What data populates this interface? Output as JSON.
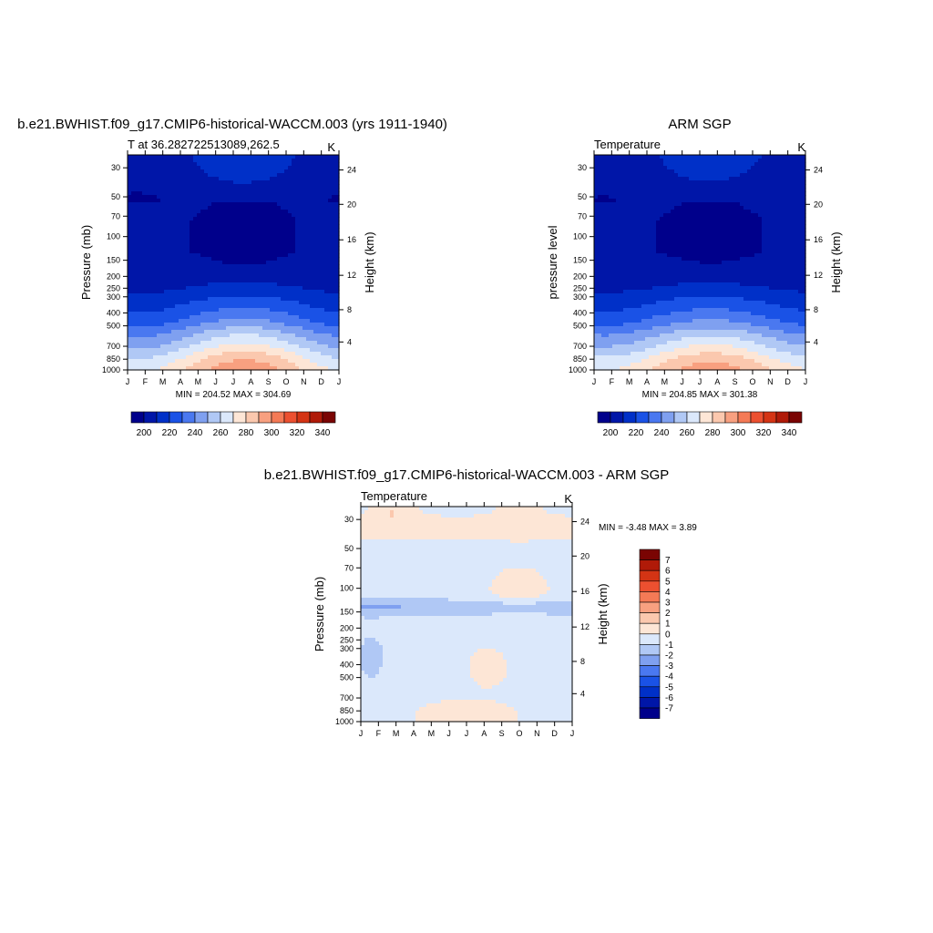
{
  "colors": {
    "levels_abs": [
      "#00008b",
      "#0016a8",
      "#0030c8",
      "#1a52e6",
      "#4a78f0",
      "#7fa0f0",
      "#b0c8f5",
      "#dbe8fb",
      "#fde6d6",
      "#fbc8ae",
      "#f8a080",
      "#f47a56",
      "#ec5030",
      "#d43414",
      "#b01a08",
      "#7a0403"
    ],
    "levels_diff": [
      "#00008b",
      "#0016a8",
      "#0030c8",
      "#1a52e6",
      "#4a78f0",
      "#7fa0f0",
      "#b0c8f5",
      "#dbe8fb",
      "#fde6d6",
      "#fbc8ae",
      "#f8a080",
      "#f47a56",
      "#ec5030",
      "#d43414",
      "#b01a08",
      "#7a0403"
    ]
  },
  "chart_data": [
    {
      "type": "heatmap",
      "id": "model",
      "title": "b.e21.BWHIST.f09_g17.CMIP6-historical-WACCM.003 (yrs 1911-1940)",
      "left_string": "T at 36.282722513089,262.5",
      "right_string": "K",
      "ylabel": "Pressure (mb)",
      "ylabel_right": "Height (km)",
      "xticks": [
        "J",
        "F",
        "M",
        "A",
        "M",
        "J",
        "J",
        "A",
        "S",
        "O",
        "N",
        "D",
        "J"
      ],
      "yticks": [
        "30",
        "50",
        "70",
        "100",
        "150",
        "200",
        "250",
        "300",
        "400",
        "500",
        "700",
        "850",
        "1000"
      ],
      "yticks_right": [
        "24",
        "20",
        "16",
        "12",
        "8",
        "4"
      ],
      "stats": "MIN = 204.52 MAX = 304.69",
      "colorbar_labels": [
        "200",
        "220",
        "240",
        "260",
        "280",
        "300",
        "320",
        "340"
      ],
      "amp": 1.0
    },
    {
      "type": "heatmap",
      "id": "obs",
      "title": "ARM SGP",
      "left_string": "Temperature",
      "right_string": "K",
      "ylabel": "pressure level",
      "ylabel_right": "Height (km)",
      "xticks": [
        "J",
        "F",
        "M",
        "A",
        "M",
        "J",
        "J",
        "A",
        "S",
        "O",
        "N",
        "D",
        "J"
      ],
      "yticks": [
        "30",
        "50",
        "70",
        "100",
        "150",
        "200",
        "250",
        "300",
        "400",
        "500",
        "700",
        "850",
        "1000"
      ],
      "yticks_right": [
        "24",
        "20",
        "16",
        "12",
        "8",
        "4"
      ],
      "stats": "MIN = 204.85 MAX = 301.38",
      "colorbar_labels": [
        "200",
        "220",
        "240",
        "260",
        "280",
        "300",
        "320",
        "340"
      ],
      "amp": 0.85
    },
    {
      "type": "heatmap",
      "id": "diff",
      "title": "b.e21.BWHIST.f09_g17.CMIP6-historical-WACCM.003 - ARM SGP",
      "left_string": "Temperature",
      "right_string": "K",
      "ylabel": "Pressure (mb)",
      "ylabel_right": "Height (km)",
      "xticks": [
        "J",
        "F",
        "M",
        "A",
        "M",
        "J",
        "J",
        "A",
        "S",
        "O",
        "N",
        "D",
        "J"
      ],
      "yticks": [
        "30",
        "50",
        "70",
        "100",
        "150",
        "200",
        "250",
        "300",
        "400",
        "500",
        "700",
        "850",
        "1000"
      ],
      "yticks_right": [
        "24",
        "20",
        "16",
        "12",
        "8",
        "4"
      ],
      "stats": "MIN =  -3.48 MAX =   3.89",
      "colorbar_labels": [
        "7",
        "6",
        "5",
        "4",
        "3",
        "2",
        "1",
        "0",
        "-1",
        "-2",
        "-3",
        "-4",
        "-5",
        "-6",
        "-7"
      ]
    }
  ]
}
